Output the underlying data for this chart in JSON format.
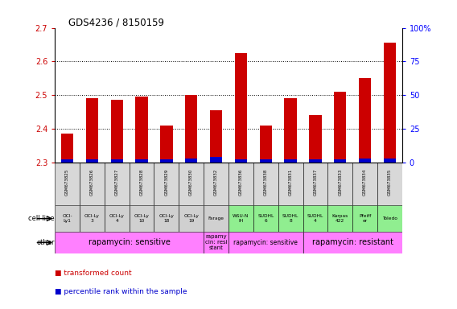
{
  "title": "GDS4236 / 8150159",
  "samples": [
    "GSM673825",
    "GSM673826",
    "GSM673827",
    "GSM673828",
    "GSM673829",
    "GSM673830",
    "GSM673832",
    "GSM673836",
    "GSM673838",
    "GSM673831",
    "GSM673837",
    "GSM673833",
    "GSM673834",
    "GSM673835"
  ],
  "red_values": [
    2.385,
    2.49,
    2.485,
    2.495,
    2.41,
    2.5,
    2.455,
    2.625,
    2.41,
    2.49,
    2.44,
    2.51,
    2.55,
    2.655
  ],
  "blue_percentile": [
    2,
    2,
    2,
    2,
    2,
    3,
    4,
    2,
    2,
    2,
    2,
    2,
    3,
    3
  ],
  "ylim_min": 2.3,
  "ylim_max": 2.7,
  "cell_line_row": [
    "OCI-\nLy1",
    "OCI-Ly\n3",
    "OCI-Ly\n4",
    "OCI-Ly\n10",
    "OCI-Ly\n18",
    "OCI-Ly\n19",
    "Farage",
    "WSU-N\nIH",
    "SUDHL\n6",
    "SUDHL\n8",
    "SUDHL\n4",
    "Karpas\n422",
    "Pfeiff\ner",
    "Toledo"
  ],
  "cell_line_colors": [
    "#d0d0d0",
    "#d0d0d0",
    "#d0d0d0",
    "#d0d0d0",
    "#d0d0d0",
    "#d0d0d0",
    "#d0d0d0",
    "#90ee90",
    "#90ee90",
    "#90ee90",
    "#90ee90",
    "#90ee90",
    "#90ee90",
    "#90ee90"
  ],
  "other_spans": [
    [
      0,
      5,
      "rapamycin: sensitive",
      "#ff80ff",
      7
    ],
    [
      6,
      6,
      "rapamy\ncin: resi\nstant",
      "#ff80ff",
      5
    ],
    [
      7,
      9,
      "rapamycin: sensitive",
      "#ff80ff",
      5.5
    ],
    [
      10,
      13,
      "rapamycin: resistant",
      "#ff80ff",
      7
    ]
  ],
  "bar_width": 0.5,
  "red_color": "#cc0000",
  "blue_color": "#0000cc",
  "yticks_left": [
    2.3,
    2.4,
    2.5,
    2.6,
    2.7
  ],
  "yticks_right": [
    0,
    25,
    50,
    75,
    100
  ],
  "legend_red": "transformed count",
  "legend_blue": "percentile rank within the sample",
  "bg_color": "#ffffff"
}
